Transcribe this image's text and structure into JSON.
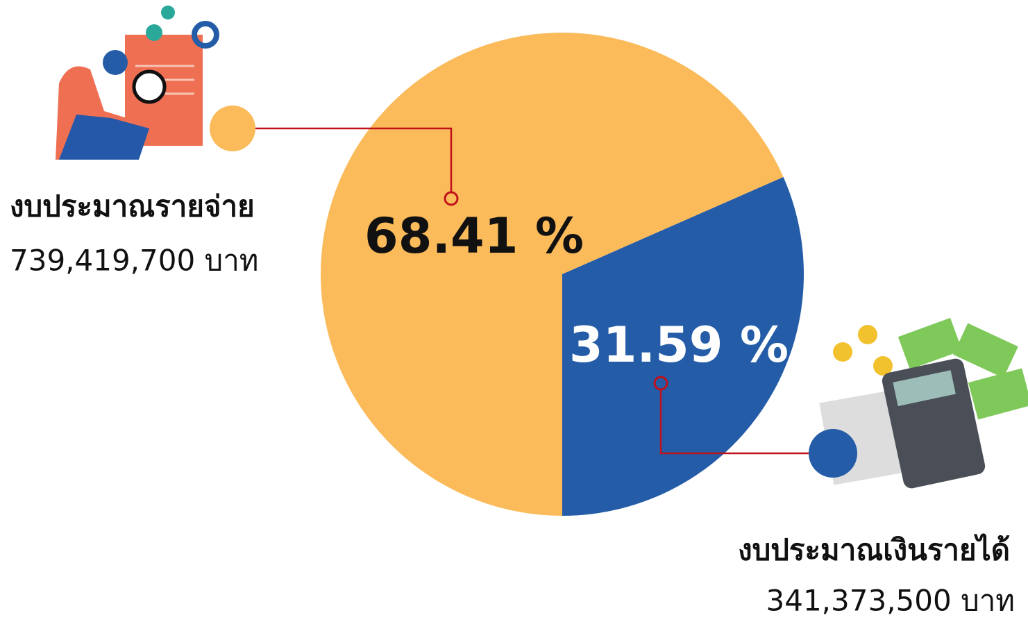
{
  "chart_data": {
    "type": "pie",
    "categories": [
      "งบประมาณรายจ่าย",
      "งบประมาณเงินรายได้"
    ],
    "values": [
      68.41,
      31.59
    ],
    "value_labels": [
      "68.41 %",
      "31.59 %"
    ],
    "amount_labels": [
      "739,419,700 บาท",
      "341,373,500 บาท"
    ],
    "colors": [
      "#fbbb5a",
      "#245ca8"
    ]
  }
}
